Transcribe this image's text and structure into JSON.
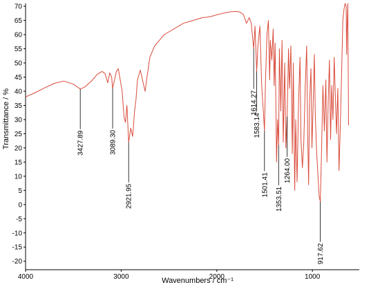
{
  "chart_data": {
    "type": "line",
    "xlabel": "Wavenumbers / cm⁻¹",
    "ylabel": "Transmittance / %",
    "xlim": [
      4000,
      510
    ],
    "ylim": [
      -23,
      71
    ],
    "x_ticks": [
      4000,
      3000,
      2000,
      1000
    ],
    "y_ticks": [
      70,
      65,
      60,
      55,
      50,
      45,
      40,
      35,
      30,
      25,
      20,
      15,
      10,
      5,
      0,
      -5,
      -10,
      -15,
      -20
    ],
    "grid": false,
    "colors": {
      "line": "#d94a3a",
      "marker": "#000000",
      "axis": "#000000"
    },
    "series": [
      {
        "points": [
          [
            4000,
            38
          ],
          [
            3900,
            39.5
          ],
          [
            3800,
            41.2
          ],
          [
            3700,
            42.8
          ],
          [
            3600,
            43.6
          ],
          [
            3500,
            42.5
          ],
          [
            3427.89,
            40.8
          ],
          [
            3380,
            41.5
          ],
          [
            3300,
            44
          ],
          [
            3250,
            46
          ],
          [
            3200,
            47
          ],
          [
            3170,
            46.3
          ],
          [
            3140,
            43
          ],
          [
            3120,
            46.5
          ],
          [
            3100,
            45
          ],
          [
            3089.3,
            41
          ],
          [
            3070,
            44
          ],
          [
            3050,
            47
          ],
          [
            3030,
            48
          ],
          [
            3010,
            44
          ],
          [
            2990,
            40
          ],
          [
            2970,
            31
          ],
          [
            2955,
            29
          ],
          [
            2940,
            35
          ],
          [
            2921.95,
            22
          ],
          [
            2900,
            27
          ],
          [
            2880,
            24
          ],
          [
            2860,
            33
          ],
          [
            2845,
            37
          ],
          [
            2830,
            44
          ],
          [
            2800,
            47.5
          ],
          [
            2770,
            43
          ],
          [
            2750,
            40
          ],
          [
            2730,
            45
          ],
          [
            2700,
            52
          ],
          [
            2650,
            56
          ],
          [
            2600,
            58
          ],
          [
            2550,
            60
          ],
          [
            2500,
            61
          ],
          [
            2450,
            62
          ],
          [
            2400,
            63
          ],
          [
            2350,
            64
          ],
          [
            2300,
            64.5
          ],
          [
            2250,
            65
          ],
          [
            2200,
            65.5
          ],
          [
            2150,
            66
          ],
          [
            2100,
            66.2
          ],
          [
            2050,
            66.5
          ],
          [
            2000,
            67
          ],
          [
            1950,
            67.4
          ],
          [
            1900,
            67.8
          ],
          [
            1850,
            68.1
          ],
          [
            1800,
            68.2
          ],
          [
            1760,
            68
          ],
          [
            1720,
            67
          ],
          [
            1690,
            64
          ],
          [
            1660,
            66
          ],
          [
            1640,
            64
          ],
          [
            1614.27,
            55
          ],
          [
            1600,
            63
          ],
          [
            1583.14,
            47
          ],
          [
            1570,
            56
          ],
          [
            1550,
            63
          ],
          [
            1530,
            42
          ],
          [
            1515,
            34
          ],
          [
            1501.41,
            26
          ],
          [
            1490,
            45
          ],
          [
            1475,
            60
          ],
          [
            1460,
            65
          ],
          [
            1447,
            44
          ],
          [
            1440,
            58
          ],
          [
            1425,
            51
          ],
          [
            1410,
            62
          ],
          [
            1400,
            42
          ],
          [
            1390,
            57
          ],
          [
            1375,
            15
          ],
          [
            1365,
            30
          ],
          [
            1353.51,
            21
          ],
          [
            1345,
            55
          ],
          [
            1330,
            33
          ],
          [
            1318,
            58
          ],
          [
            1305,
            22
          ],
          [
            1290,
            50
          ],
          [
            1278,
            20
          ],
          [
            1264.0,
            31
          ],
          [
            1250,
            55
          ],
          [
            1240,
            41
          ],
          [
            1225,
            56
          ],
          [
            1210,
            18
          ],
          [
            1200,
            50
          ],
          [
            1185,
            5
          ],
          [
            1175,
            30
          ],
          [
            1160,
            8
          ],
          [
            1145,
            36
          ],
          [
            1130,
            52
          ],
          [
            1120,
            23
          ],
          [
            1105,
            13
          ],
          [
            1090,
            22
          ],
          [
            1075,
            42
          ],
          [
            1060,
            56
          ],
          [
            1050,
            25
          ],
          [
            1040,
            7
          ],
          [
            1030,
            36
          ],
          [
            1015,
            48
          ],
          [
            1005,
            20
          ],
          [
            995,
            32
          ],
          [
            980,
            53
          ],
          [
            970,
            32
          ],
          [
            955,
            18
          ],
          [
            945,
            12
          ],
          [
            930,
            3
          ],
          [
            917.62,
            1
          ],
          [
            905,
            18
          ],
          [
            890,
            42
          ],
          [
            875,
            26
          ],
          [
            860,
            44
          ],
          [
            848,
            15
          ],
          [
            835,
            36
          ],
          [
            822,
            51
          ],
          [
            810,
            23
          ],
          [
            798,
            42
          ],
          [
            785,
            30
          ],
          [
            772,
            52
          ],
          [
            760,
            38
          ],
          [
            748,
            25
          ],
          [
            735,
            41
          ],
          [
            722,
            12
          ],
          [
            708,
            28
          ],
          [
            695,
            46
          ],
          [
            682,
            65
          ],
          [
            670,
            69
          ],
          [
            658,
            71
          ],
          [
            647,
            70
          ],
          [
            642,
            53
          ],
          [
            638,
            62
          ],
          [
            630,
            71
          ],
          [
            622,
            28
          ]
        ]
      }
    ],
    "annotations": [
      {
        "label": "3427.89",
        "x": 3427.89,
        "y": 40.8
      },
      {
        "label": "3089.30",
        "x": 3089.3,
        "y": 41
      },
      {
        "label": "2921.95",
        "x": 2921.95,
        "y": 22
      },
      {
        "label": "1614.27",
        "x": 1614.27,
        "y": 55
      },
      {
        "label": "1583.14",
        "x": 1583.14,
        "y": 47
      },
      {
        "label": "1501.41",
        "x": 1501.41,
        "y": 26
      },
      {
        "label": "1353.51",
        "x": 1353.51,
        "y": 21
      },
      {
        "label": "1264.00",
        "x": 1264.0,
        "y": 31
      },
      {
        "label": "917.62",
        "x": 917.62,
        "y": 1
      }
    ]
  }
}
